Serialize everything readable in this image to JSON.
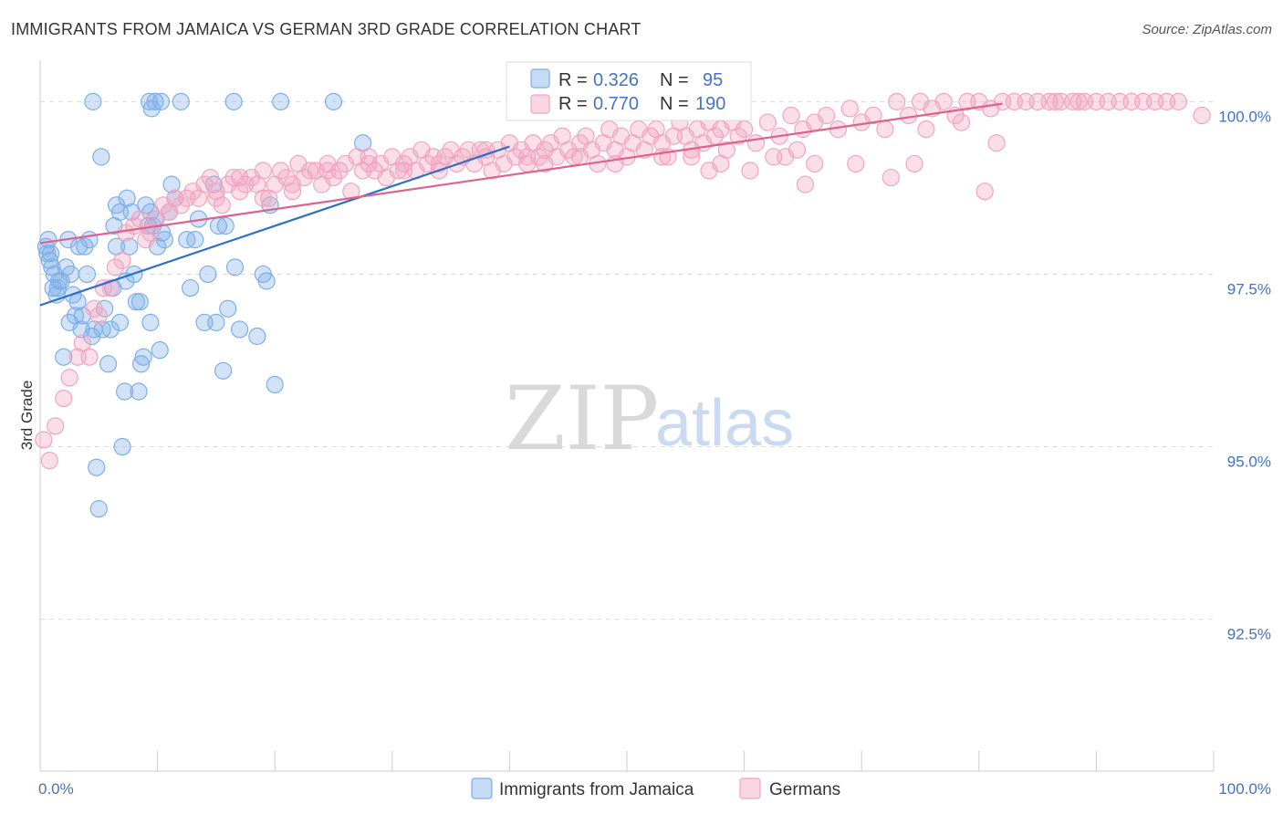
{
  "header": {
    "title": "IMMIGRANTS FROM JAMAICA VS GERMAN 3RD GRADE CORRELATION CHART",
    "source": "Source: ZipAtlas.com"
  },
  "watermark": {
    "zip": "ZIP",
    "atlas": "atlas"
  },
  "chart_data": {
    "type": "scatter",
    "title": "IMMIGRANTS FROM JAMAICA VS GERMAN 3RD GRADE CORRELATION CHART",
    "xlabel": "",
    "ylabel": "3rd Grade",
    "xlim": [
      0,
      100
    ],
    "ylim": [
      90.3,
      100.6
    ],
    "x_tick_labels": {
      "left": "0.0%",
      "right": "100.0%"
    },
    "y_ticks": [
      {
        "value": 100.0,
        "label": "100.0%"
      },
      {
        "value": 97.5,
        "label": "97.5%"
      },
      {
        "value": 95.0,
        "label": "95.0%"
      },
      {
        "value": 92.5,
        "label": "92.5%"
      }
    ],
    "grid": true,
    "legend_position": "bottom-center",
    "stats_box_position": "top-center",
    "series": [
      {
        "name": "Immigrants from Jamaica",
        "color": "#7eaee8",
        "line_color": "#2c6fcc",
        "R": "0.326",
        "N": "95",
        "trend": {
          "x": [
            0,
            40
          ],
          "y": [
            97.05,
            99.35
          ]
        },
        "points": [
          [
            0.5,
            97.9
          ],
          [
            0.6,
            97.8
          ],
          [
            0.7,
            98.0
          ],
          [
            0.8,
            97.7
          ],
          [
            0.9,
            97.8
          ],
          [
            1.0,
            97.6
          ],
          [
            1.1,
            97.3
          ],
          [
            1.2,
            97.5
          ],
          [
            1.4,
            97.2
          ],
          [
            1.6,
            97.4
          ],
          [
            1.8,
            97.4
          ],
          [
            2.0,
            96.3
          ],
          [
            2.2,
            97.6
          ],
          [
            2.4,
            98.0
          ],
          [
            2.6,
            97.5
          ],
          [
            2.8,
            97.2
          ],
          [
            3.0,
            96.9
          ],
          [
            3.3,
            97.9
          ],
          [
            3.5,
            96.7
          ],
          [
            3.8,
            97.9
          ],
          [
            4.0,
            97.5
          ],
          [
            4.2,
            98.0
          ],
          [
            4.4,
            96.6
          ],
          [
            4.6,
            96.7
          ],
          [
            4.8,
            94.7
          ],
          [
            5.0,
            94.1
          ],
          [
            5.3,
            96.7
          ],
          [
            5.5,
            97.0
          ],
          [
            5.8,
            96.2
          ],
          [
            6.0,
            96.7
          ],
          [
            6.2,
            97.3
          ],
          [
            6.5,
            97.9
          ],
          [
            6.3,
            98.2
          ],
          [
            6.5,
            98.5
          ],
          [
            6.8,
            98.4
          ],
          [
            7.0,
            95.0
          ],
          [
            7.2,
            95.8
          ],
          [
            7.4,
            98.6
          ],
          [
            7.6,
            97.9
          ],
          [
            7.8,
            98.4
          ],
          [
            8.0,
            97.5
          ],
          [
            8.2,
            97.1
          ],
          [
            8.4,
            95.8
          ],
          [
            8.6,
            96.2
          ],
          [
            8.8,
            96.3
          ],
          [
            9.0,
            98.5
          ],
          [
            9.2,
            98.2
          ],
          [
            9.4,
            96.8
          ],
          [
            9.6,
            98.2
          ],
          [
            9.8,
            98.3
          ],
          [
            10.0,
            97.9
          ],
          [
            10.2,
            96.4
          ],
          [
            10.4,
            98.1
          ],
          [
            10.6,
            98.0
          ],
          [
            11.0,
            98.4
          ],
          [
            11.2,
            98.8
          ],
          [
            12.5,
            98.0
          ],
          [
            12.8,
            97.3
          ],
          [
            13.2,
            98.0
          ],
          [
            14.0,
            96.8
          ],
          [
            14.3,
            97.5
          ],
          [
            15.0,
            96.8
          ],
          [
            15.2,
            98.2
          ],
          [
            15.6,
            96.1
          ],
          [
            16.0,
            97.0
          ],
          [
            16.6,
            97.6
          ],
          [
            17.0,
            96.7
          ],
          [
            18.5,
            96.6
          ],
          [
            19.0,
            97.5
          ],
          [
            19.3,
            97.4
          ],
          [
            19.6,
            98.5
          ],
          [
            20.0,
            95.9
          ],
          [
            9.3,
            100.0
          ],
          [
            9.5,
            99.9
          ],
          [
            9.8,
            100.0
          ],
          [
            10.3,
            100.0
          ],
          [
            12.0,
            100.0
          ],
          [
            16.5,
            100.0
          ],
          [
            20.5,
            100.0
          ],
          [
            25.0,
            100.0
          ],
          [
            27.5,
            99.4
          ],
          [
            4.5,
            100.0
          ],
          [
            5.2,
            99.2
          ],
          [
            1.5,
            97.3
          ],
          [
            2.5,
            96.8
          ],
          [
            3.2,
            97.1
          ],
          [
            6.8,
            96.8
          ],
          [
            7.3,
            97.4
          ],
          [
            9.4,
            98.4
          ],
          [
            11.5,
            98.6
          ],
          [
            14.8,
            98.8
          ],
          [
            3.6,
            96.9
          ],
          [
            8.5,
            97.1
          ],
          [
            13.5,
            98.3
          ],
          [
            15.8,
            98.2
          ]
        ]
      },
      {
        "name": "Germans",
        "color": "#f2a4bf",
        "line_color": "#e0608e",
        "R": "0.770",
        "N": "190",
        "trend": {
          "x": [
            0,
            82
          ],
          "y": [
            97.95,
            99.97
          ]
        },
        "points": [
          [
            0.3,
            95.1
          ],
          [
            0.8,
            94.8
          ],
          [
            1.3,
            95.3
          ],
          [
            2.0,
            95.7
          ],
          [
            2.5,
            96.0
          ],
          [
            3.2,
            96.3
          ],
          [
            3.6,
            96.5
          ],
          [
            4.2,
            96.3
          ],
          [
            4.6,
            97.0
          ],
          [
            5.0,
            96.9
          ],
          [
            5.4,
            97.3
          ],
          [
            6.0,
            97.3
          ],
          [
            6.4,
            97.6
          ],
          [
            7.0,
            97.7
          ],
          [
            7.3,
            98.1
          ],
          [
            8.0,
            98.2
          ],
          [
            8.5,
            98.3
          ],
          [
            9.0,
            98.0
          ],
          [
            9.4,
            98.1
          ],
          [
            9.9,
            98.3
          ],
          [
            10.5,
            98.5
          ],
          [
            11.0,
            98.4
          ],
          [
            11.5,
            98.6
          ],
          [
            12.0,
            98.5
          ],
          [
            12.5,
            98.6
          ],
          [
            13.0,
            98.7
          ],
          [
            13.5,
            98.6
          ],
          [
            14.0,
            98.8
          ],
          [
            14.5,
            98.9
          ],
          [
            15.0,
            98.7
          ],
          [
            15.5,
            98.5
          ],
          [
            16.0,
            98.8
          ],
          [
            16.5,
            98.9
          ],
          [
            17.0,
            98.7
          ],
          [
            17.5,
            98.8
          ],
          [
            18.0,
            98.9
          ],
          [
            18.5,
            98.8
          ],
          [
            19.0,
            99.0
          ],
          [
            19.5,
            98.6
          ],
          [
            20.0,
            98.8
          ],
          [
            20.5,
            99.0
          ],
          [
            21.0,
            98.9
          ],
          [
            21.5,
            98.7
          ],
          [
            22.0,
            99.1
          ],
          [
            22.5,
            98.9
          ],
          [
            23.0,
            99.0
          ],
          [
            23.5,
            99.0
          ],
          [
            24.0,
            98.8
          ],
          [
            24.5,
            99.1
          ],
          [
            25.0,
            98.9
          ],
          [
            25.5,
            99.0
          ],
          [
            26.0,
            99.1
          ],
          [
            26.5,
            98.7
          ],
          [
            27.0,
            99.2
          ],
          [
            27.5,
            99.0
          ],
          [
            28.0,
            99.2
          ],
          [
            28.5,
            99.0
          ],
          [
            29.0,
            99.1
          ],
          [
            29.5,
            98.9
          ],
          [
            30.0,
            99.2
          ],
          [
            30.5,
            99.0
          ],
          [
            31.0,
            99.1
          ],
          [
            31.5,
            99.2
          ],
          [
            32.0,
            99.0
          ],
          [
            32.5,
            99.3
          ],
          [
            33.0,
            99.1
          ],
          [
            33.5,
            99.2
          ],
          [
            34.0,
            99.0
          ],
          [
            34.5,
            99.2
          ],
          [
            35.0,
            99.3
          ],
          [
            35.5,
            99.1
          ],
          [
            36.0,
            99.2
          ],
          [
            36.5,
            99.3
          ],
          [
            37.0,
            99.1
          ],
          [
            37.5,
            99.3
          ],
          [
            38.0,
            99.2
          ],
          [
            38.5,
            99.0
          ],
          [
            39.0,
            99.3
          ],
          [
            39.5,
            99.1
          ],
          [
            40.0,
            99.4
          ],
          [
            40.5,
            99.2
          ],
          [
            41.0,
            99.3
          ],
          [
            41.5,
            99.1
          ],
          [
            42.0,
            99.4
          ],
          [
            42.5,
            99.2
          ],
          [
            43.0,
            99.3
          ],
          [
            43.5,
            99.4
          ],
          [
            44.0,
            99.2
          ],
          [
            44.5,
            99.5
          ],
          [
            45.0,
            99.3
          ],
          [
            45.5,
            99.2
          ],
          [
            46.0,
            99.4
          ],
          [
            46.5,
            99.5
          ],
          [
            47.0,
            99.3
          ],
          [
            47.5,
            99.1
          ],
          [
            48.0,
            99.4
          ],
          [
            48.5,
            99.6
          ],
          [
            49.0,
            99.3
          ],
          [
            49.5,
            99.5
          ],
          [
            50.0,
            99.2
          ],
          [
            50.5,
            99.4
          ],
          [
            51.0,
            99.6
          ],
          [
            51.5,
            99.3
          ],
          [
            52.0,
            99.5
          ],
          [
            52.5,
            99.6
          ],
          [
            53.0,
            99.4
          ],
          [
            53.5,
            99.2
          ],
          [
            54.0,
            99.5
          ],
          [
            54.5,
            99.7
          ],
          [
            55.0,
            99.5
          ],
          [
            55.5,
            99.3
          ],
          [
            56.0,
            99.6
          ],
          [
            56.5,
            99.4
          ],
          [
            57.0,
            99.7
          ],
          [
            57.5,
            99.5
          ],
          [
            58.0,
            99.6
          ],
          [
            58.5,
            99.3
          ],
          [
            59.0,
            99.7
          ],
          [
            59.5,
            99.5
          ],
          [
            60.0,
            99.6
          ],
          [
            61.0,
            99.4
          ],
          [
            62.0,
            99.7
          ],
          [
            63.0,
            99.5
          ],
          [
            64.0,
            99.8
          ],
          [
            65.0,
            99.6
          ],
          [
            66.0,
            99.7
          ],
          [
            67.0,
            99.8
          ],
          [
            68.0,
            99.6
          ],
          [
            69.0,
            99.9
          ],
          [
            70.0,
            99.7
          ],
          [
            71.0,
            99.8
          ],
          [
            72.0,
            99.6
          ],
          [
            73.0,
            100.0
          ],
          [
            74.0,
            99.8
          ],
          [
            75.0,
            100.0
          ],
          [
            76.0,
            99.9
          ],
          [
            77.0,
            100.0
          ],
          [
            78.0,
            99.8
          ],
          [
            79.0,
            100.0
          ],
          [
            80.0,
            100.0
          ],
          [
            81.0,
            99.9
          ],
          [
            82.0,
            100.0
          ],
          [
            83.0,
            100.0
          ],
          [
            84.0,
            100.0
          ],
          [
            85.0,
            100.0
          ],
          [
            86.0,
            100.0
          ],
          [
            87.0,
            100.0
          ],
          [
            88.0,
            100.0
          ],
          [
            89.0,
            100.0
          ],
          [
            90.0,
            100.0
          ],
          [
            91.0,
            100.0
          ],
          [
            92.0,
            100.0
          ],
          [
            93.0,
            100.0
          ],
          [
            94.0,
            100.0
          ],
          [
            95.0,
            100.0
          ],
          [
            96.0,
            100.0
          ],
          [
            97.0,
            100.0
          ],
          [
            99.0,
            99.8
          ],
          [
            63.5,
            99.2
          ],
          [
            66.0,
            99.1
          ],
          [
            69.5,
            99.1
          ],
          [
            72.5,
            98.9
          ],
          [
            80.5,
            98.7
          ],
          [
            81.5,
            99.4
          ],
          [
            65.2,
            98.8
          ],
          [
            60.5,
            99.0
          ],
          [
            58.0,
            99.1
          ],
          [
            75.5,
            99.6
          ],
          [
            78.5,
            99.7
          ],
          [
            86.5,
            100.0
          ],
          [
            88.5,
            100.0
          ],
          [
            74.5,
            99.1
          ],
          [
            64.5,
            99.3
          ],
          [
            62.5,
            99.2
          ],
          [
            57.0,
            99.0
          ],
          [
            55.5,
            99.2
          ],
          [
            53.0,
            99.2
          ],
          [
            49.0,
            99.1
          ],
          [
            46.0,
            99.2
          ],
          [
            43.0,
            99.1
          ],
          [
            41.5,
            99.2
          ],
          [
            38.0,
            99.3
          ],
          [
            34.0,
            99.1
          ],
          [
            31.0,
            99.0
          ],
          [
            28.0,
            99.1
          ],
          [
            24.5,
            99.0
          ],
          [
            21.5,
            98.8
          ],
          [
            19.0,
            98.6
          ],
          [
            17.0,
            98.9
          ],
          [
            15.0,
            98.6
          ]
        ]
      }
    ]
  },
  "legend": {
    "items": [
      {
        "label": "Immigrants from Jamaica",
        "color": "#7eaee8"
      },
      {
        "label": "Germans",
        "color": "#f2a4bf"
      }
    ]
  },
  "stats": {
    "rows": [
      {
        "r_label": "R =",
        "r_value": "0.326",
        "n_label": "N =",
        "n_value": "95",
        "color": "#7eaee8"
      },
      {
        "r_label": "R =",
        "r_value": "0.770",
        "n_label": "N =",
        "n_value": "190",
        "color": "#f2a4bf"
      }
    ]
  }
}
